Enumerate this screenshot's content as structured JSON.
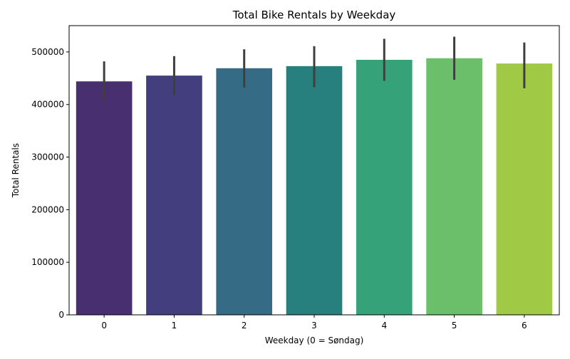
{
  "chart_data": {
    "type": "bar",
    "title": "Total Bike Rentals by Weekday",
    "xlabel": "Weekday (0 = Søndag)",
    "ylabel": "Total Rentals",
    "categories": [
      "0",
      "1",
      "2",
      "3",
      "4",
      "5",
      "6"
    ],
    "values": [
      444000,
      455000,
      469000,
      473000,
      485000,
      488000,
      478000
    ],
    "error_bars": [
      {
        "low": 407000,
        "high": 482000
      },
      {
        "low": 418000,
        "high": 492000
      },
      {
        "low": 432000,
        "high": 505000
      },
      {
        "low": 433000,
        "high": 511000
      },
      {
        "low": 445000,
        "high": 525000
      },
      {
        "low": 447000,
        "high": 529000
      },
      {
        "low": 431000,
        "high": 518000
      }
    ],
    "colors": [
      "#482f70",
      "#433f7f",
      "#366b85",
      "#277f7e",
      "#35a27a",
      "#6bbf6b",
      "#a0c945"
    ],
    "ylim": [
      0,
      550000
    ],
    "yticks": [
      0,
      100000,
      200000,
      300000,
      400000,
      500000
    ],
    "ytick_labels": [
      "0",
      "100000",
      "200000",
      "300000",
      "400000",
      "500000"
    ],
    "grid": false,
    "legend": "none"
  }
}
